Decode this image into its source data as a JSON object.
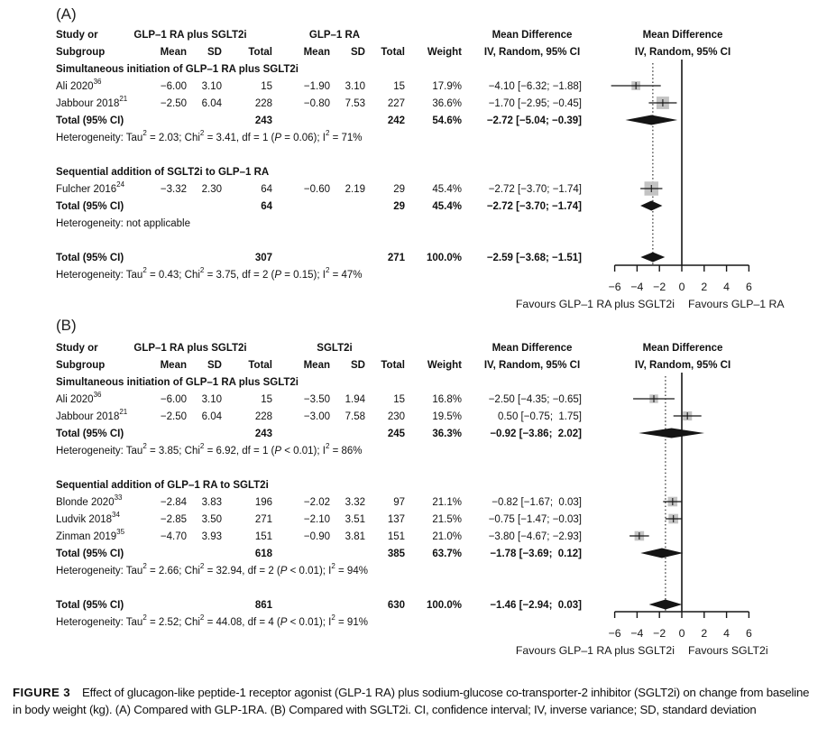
{
  "figure": {
    "caption_label": "FIGURE 3",
    "caption_text": "Effect of glucagon-like peptide-1 receptor agonist (GLP-1 RA) plus sodium-glucose co-transporter-2 inhibitor (SGLT2i) on change from baseline in body weight (kg). (A) Compared with GLP-1RA. (B) Compared with SGLT2i. CI, confidence interval; IV, inverse variance; SD, standard deviation"
  },
  "colors": {
    "ink": "#161616",
    "square": "#c3c3c3",
    "diamond": "#141414"
  },
  "chart_data": [
    {
      "type": "forest",
      "panel_label": "(A)",
      "header": {
        "study_line1": "Study or",
        "study_line2": "Subgroup",
        "group1": "GLP–1 RA plus SGLT2i",
        "group2": "GLP–1 RA",
        "cols": [
          "Mean",
          "SD",
          "Total",
          "Mean",
          "SD",
          "Total",
          "Weight"
        ],
        "effect_line1": "Mean Difference",
        "effect_line2": "IV, Random, 95% CI",
        "plot_line1": "Mean Difference",
        "plot_line2": "IV, Random, 95% CI"
      },
      "axis": {
        "xlim": [
          -6,
          6
        ],
        "ticks": [
          -6,
          -4,
          -2,
          0,
          2,
          4,
          6
        ],
        "zero_line": 0,
        "dashed_at": -2.59,
        "favours_left": "Favours GLP–1 RA plus SGLT2i",
        "favours_right": "Favours GLP–1 RA"
      },
      "rows": [
        {
          "kind": "section",
          "label": "Simultaneous initiation of GLP–1 RA plus SGLT2i"
        },
        {
          "kind": "study",
          "study": "Ali 2020",
          "ref": "36",
          "mean1": "−6.00",
          "sd1": "3.10",
          "n1": "15",
          "mean2": "−1.90",
          "sd2": "3.10",
          "n2": "15",
          "weight": "17.9%",
          "ci_text": "−4.10 [−6.32; −1.88]",
          "md": -4.1,
          "lo": -6.32,
          "hi": -1.88
        },
        {
          "kind": "study",
          "study": "Jabbour 2018",
          "ref": "21",
          "mean1": "−2.50",
          "sd1": "6.04",
          "n1": "228",
          "mean2": "−0.80",
          "sd2": "7.53",
          "n2": "227",
          "weight": "36.6%",
          "ci_text": "−1.70 [−2.95; −0.45]",
          "md": -1.7,
          "lo": -2.95,
          "hi": -0.45
        },
        {
          "kind": "total",
          "label": "Total (95% CI)",
          "n1": "243",
          "n2": "242",
          "weight": "54.6%",
          "ci_text": "−2.72 [−5.04; −0.39]",
          "md": -2.72,
          "lo": -5.04,
          "hi": -0.39
        },
        {
          "kind": "het",
          "label": "Heterogeneity: Tau² = 2.03; Chi² = 3.41, df = 1 (P = 0.06); I² = 71%"
        },
        {
          "kind": "blank"
        },
        {
          "kind": "section",
          "label": "Sequential addition of SGLT2i to GLP–1 RA"
        },
        {
          "kind": "study",
          "study": "Fulcher 2016",
          "ref": "24",
          "mean1": "−3.32",
          "sd1": "2.30",
          "n1": "64",
          "mean2": "−0.60",
          "sd2": "2.19",
          "n2": "29",
          "weight": "45.4%",
          "ci_text": "−2.72 [−3.70; −1.74]",
          "md": -2.72,
          "lo": -3.7,
          "hi": -1.74
        },
        {
          "kind": "total",
          "label": "Total (95% CI)",
          "n1": "64",
          "n2": "29",
          "weight": "45.4%",
          "ci_text": "−2.72 [−3.70; −1.74]",
          "md": -2.72,
          "lo": -3.7,
          "hi": -1.74
        },
        {
          "kind": "het",
          "label": "Heterogeneity: not applicable"
        },
        {
          "kind": "blank"
        },
        {
          "kind": "total",
          "label": "Total (95% CI)",
          "n1": "307",
          "n2": "271",
          "weight": "100.0%",
          "ci_text": "−2.59 [−3.68; −1.51]",
          "md": -2.59,
          "lo": -3.68,
          "hi": -1.51
        },
        {
          "kind": "het",
          "label": "Heterogeneity: Tau² = 0.43; Chi² = 3.75, df = 2 (P = 0.15); I² = 47%"
        }
      ]
    },
    {
      "type": "forest",
      "panel_label": "(B)",
      "header": {
        "study_line1": "Study or",
        "study_line2": "Subgroup",
        "group1": "GLP–1 RA plus SGLT2i",
        "group2": "SGLT2i",
        "cols": [
          "Mean",
          "SD",
          "Total",
          "Mean",
          "SD",
          "Total",
          "Weight"
        ],
        "effect_line1": "Mean Difference",
        "effect_line2": "IV, Random, 95% CI",
        "plot_line1": "Mean Difference",
        "plot_line2": "IV, Random, 95% CI"
      },
      "axis": {
        "xlim": [
          -6,
          6
        ],
        "ticks": [
          -6,
          -4,
          -2,
          0,
          2,
          4,
          6
        ],
        "zero_line": 0,
        "dashed_at": -1.46,
        "favours_left": "Favours GLP–1 RA plus SGLT2i",
        "favours_right": "Favours SGLT2i"
      },
      "rows": [
        {
          "kind": "section",
          "label": "Simultaneous initiation of GLP–1 RA plus SGLT2i"
        },
        {
          "kind": "study",
          "study": "Ali 2020",
          "ref": "36",
          "mean1": "−6.00",
          "sd1": "3.10",
          "n1": "15",
          "mean2": "−3.50",
          "sd2": "1.94",
          "n2": "15",
          "weight": "16.8%",
          "ci_text": "−2.50 [−4.35; −0.65]",
          "md": -2.5,
          "lo": -4.35,
          "hi": -0.65
        },
        {
          "kind": "study",
          "study": "Jabbour 2018",
          "ref": "21",
          "mean1": "−2.50",
          "sd1": "6.04",
          "n1": "228",
          "mean2": "−3.00",
          "sd2": "7.58",
          "n2": "230",
          "weight": "19.5%",
          "ci_text": "0.50 [−0.75;  1.75]",
          "md": 0.5,
          "lo": -0.75,
          "hi": 1.75
        },
        {
          "kind": "total",
          "label": "Total (95% CI)",
          "n1": "243",
          "n2": "245",
          "weight": "36.3%",
          "ci_text": "−0.92 [−3.86;  2.02]",
          "md": -0.92,
          "lo": -3.86,
          "hi": 2.02
        },
        {
          "kind": "het",
          "label": "Heterogeneity: Tau² = 3.85; Chi² = 6.92, df = 1 (P < 0.01); I² = 86%"
        },
        {
          "kind": "blank"
        },
        {
          "kind": "section",
          "label": "Sequential addition of GLP–1 RA to SGLT2i"
        },
        {
          "kind": "study",
          "study": "Blonde 2020",
          "ref": "33",
          "mean1": "−2.84",
          "sd1": "3.83",
          "n1": "196",
          "mean2": "−2.02",
          "sd2": "3.32",
          "n2": "97",
          "weight": "21.1%",
          "ci_text": "−0.82 [−1.67;  0.03]",
          "md": -0.82,
          "lo": -1.67,
          "hi": 0.03
        },
        {
          "kind": "study",
          "study": "Ludvik 2018",
          "ref": "34",
          "mean1": "−2.85",
          "sd1": "3.50",
          "n1": "271",
          "mean2": "−2.10",
          "sd2": "3.51",
          "n2": "137",
          "weight": "21.5%",
          "ci_text": "−0.75 [−1.47; −0.03]",
          "md": -0.75,
          "lo": -1.47,
          "hi": -0.03
        },
        {
          "kind": "study",
          "study": "Zinman 2019",
          "ref": "35",
          "mean1": "−4.70",
          "sd1": "3.93",
          "n1": "151",
          "mean2": "−0.90",
          "sd2": "3.81",
          "n2": "151",
          "weight": "21.0%",
          "ci_text": "−3.80 [−4.67; −2.93]",
          "md": -3.8,
          "lo": -4.67,
          "hi": -2.93
        },
        {
          "kind": "total",
          "label": "Total (95% CI)",
          "n1": "618",
          "n2": "385",
          "weight": "63.7%",
          "ci_text": "−1.78 [−3.69;  0.12]",
          "md": -1.78,
          "lo": -3.69,
          "hi": 0.12
        },
        {
          "kind": "het",
          "label": "Heterogeneity: Tau² = 2.66; Chi² = 32.94, df = 2 (P < 0.01); I² = 94%"
        },
        {
          "kind": "blank"
        },
        {
          "kind": "total",
          "label": "Total (95% CI)",
          "n1": "861",
          "n2": "630",
          "weight": "100.0%",
          "ci_text": "−1.46 [−2.94;  0.03]",
          "md": -1.46,
          "lo": -2.94,
          "hi": 0.03
        },
        {
          "kind": "het",
          "label": "Heterogeneity: Tau² = 2.52; Chi² = 44.08, df = 4 (P < 0.01); I² = 91%"
        }
      ]
    }
  ]
}
